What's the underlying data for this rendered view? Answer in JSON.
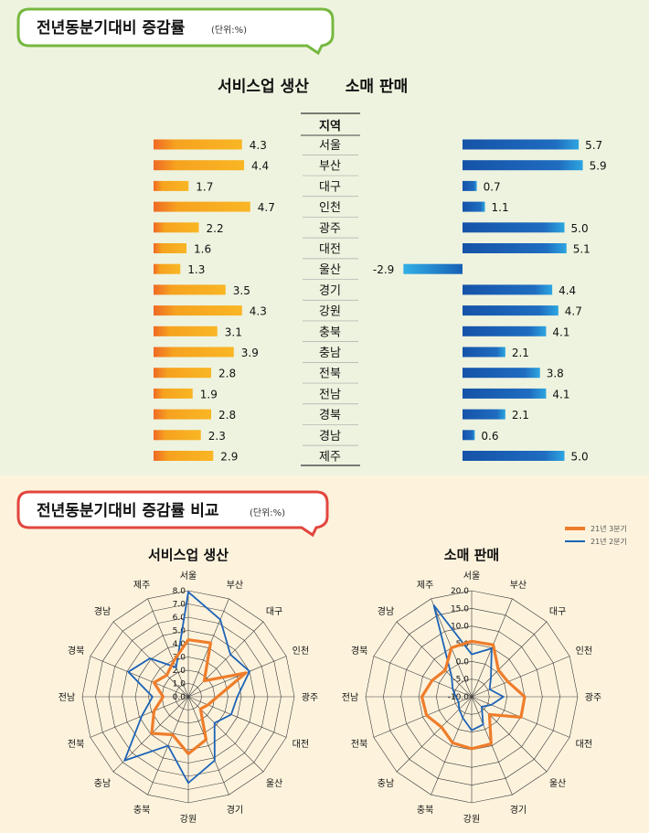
{
  "section1": {
    "title": "전년동분기대비 증감률",
    "unit": "(단위:%)"
  },
  "section2": {
    "title": "전년동분기대비 증감률 비교",
    "unit": "(단위:%)"
  },
  "bar_headers": {
    "left": "서비스업 생산",
    "right": "소매 판매",
    "region": "지역"
  },
  "radar": {
    "left_title": "서비스업 생산",
    "right_title": "소매 판매",
    "legend": [
      "21년 3분기",
      "21년 2분기"
    ]
  },
  "colors": {
    "orange": "#f39a1e",
    "blue": "#1a5fb0",
    "radar_orange": "#ee7d2b",
    "radar_blue": "#1c63b7",
    "green_border": "#76b83f",
    "red_border": "#e2463f"
  },
  "chart_data": [
    {
      "type": "bar",
      "title": "서비스업 생산",
      "categories": [
        "서울",
        "부산",
        "대구",
        "인천",
        "광주",
        "대전",
        "울산",
        "경기",
        "강원",
        "충북",
        "충남",
        "전북",
        "전남",
        "경북",
        "경남",
        "제주"
      ],
      "values": [
        4.3,
        4.4,
        1.7,
        4.7,
        2.2,
        1.6,
        1.3,
        3.5,
        4.3,
        3.1,
        3.9,
        2.8,
        1.9,
        2.8,
        2.3,
        2.9
      ],
      "labels": [
        "4.3",
        "4.4",
        "1.7",
        "4.7",
        "2.2",
        "1.6",
        "1.3",
        "3.5",
        "4.3",
        "3.1",
        "3.9",
        "2.8",
        "1.9",
        "2.8",
        "2.3",
        "2.9"
      ]
    },
    {
      "type": "bar",
      "title": "소매 판매",
      "categories": [
        "서울",
        "부산",
        "대구",
        "인천",
        "광주",
        "대전",
        "울산",
        "경기",
        "강원",
        "충북",
        "충남",
        "전북",
        "전남",
        "경북",
        "경남",
        "제주"
      ],
      "values": [
        5.7,
        5.9,
        0.7,
        1.1,
        5.0,
        5.1,
        -2.9,
        4.4,
        4.7,
        4.1,
        2.1,
        3.8,
        4.1,
        2.1,
        0.6,
        5.0
      ],
      "labels": [
        "5.7",
        "5.9",
        "0.7",
        "1.1",
        "5.0",
        "5.1",
        "-2.9",
        "4.4",
        "4.7",
        "4.1",
        "2.1",
        "3.8",
        "4.1",
        "2.1",
        "0.6",
        "5.0"
      ]
    },
    {
      "type": "radar",
      "title": "서비스업 생산",
      "categories": [
        "서울",
        "부산",
        "대구",
        "인천",
        "광주",
        "대전",
        "울산",
        "경기",
        "강원",
        "충북",
        "충남",
        "전북",
        "전남",
        "경북",
        "경남",
        "제주"
      ],
      "ylim": [
        0,
        8
      ],
      "tick_labels": [
        "0.0",
        "1.0",
        "2.0",
        "3.0",
        "4.0",
        "5.0",
        "6.0",
        "7.0",
        "8.0"
      ],
      "series": [
        {
          "name": "21년 3분기",
          "values": [
            4.3,
            4.4,
            1.7,
            4.7,
            2.2,
            1.6,
            1.3,
            3.5,
            4.3,
            3.1,
            3.9,
            2.8,
            1.9,
            2.8,
            2.3,
            2.9
          ]
        },
        {
          "name": "21년 2분기",
          "values": [
            7.9,
            6.3,
            4.5,
            5.0,
            3.7,
            3.5,
            2.8,
            5.2,
            6.5,
            4.0,
            6.8,
            3.8,
            2.7,
            4.9,
            4.1,
            2.4
          ]
        }
      ]
    },
    {
      "type": "radar",
      "title": "소매 판매",
      "categories": [
        "서울",
        "부산",
        "대구",
        "인천",
        "광주",
        "대전",
        "울산",
        "경기",
        "강원",
        "충북",
        "충남",
        "전북",
        "전남",
        "경북",
        "경남",
        "제주"
      ],
      "ylim": [
        -10,
        20
      ],
      "tick_labels": [
        "-10.0",
        "-5.0",
        "0.0",
        "5.0",
        "10.0",
        "15.0",
        "20.0"
      ],
      "series": [
        {
          "name": "21년 3분기",
          "values": [
            5.7,
            5.9,
            0.7,
            1.1,
            5.0,
            5.1,
            -2.9,
            4.4,
            4.7,
            4.1,
            2.1,
            3.8,
            4.1,
            2.1,
            0.6,
            5.0
          ]
        },
        {
          "name": "21년 2분기",
          "values": [
            2.0,
            4.8,
            -2.3,
            -4.5,
            -1.0,
            -4.0,
            -6.0,
            -1.5,
            -0.5,
            -3.5,
            -5.0,
            -6.0,
            -5.5,
            -4.2,
            -2.0,
            18.0
          ]
        }
      ]
    }
  ]
}
